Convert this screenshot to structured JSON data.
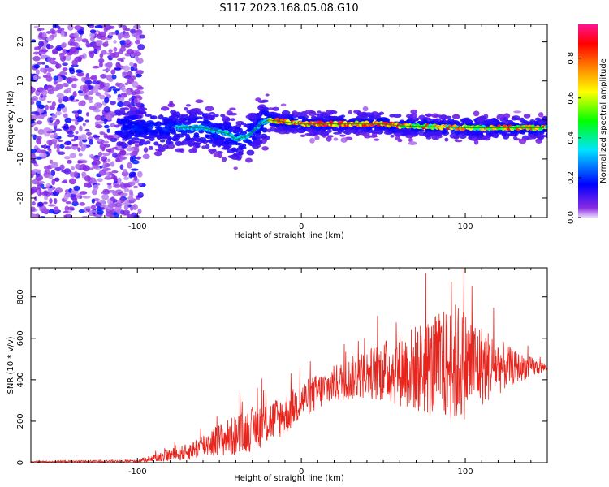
{
  "title": "S117.2023.168.05.08.G10",
  "chart_data": [
    {
      "type": "heatmap",
      "xlabel": "Height of straight line (km)",
      "ylabel": "Frequency (Hz)",
      "xlim": [
        -165,
        150
      ],
      "ylim": [
        -25,
        24.5
      ],
      "xticks": [
        -100,
        0,
        100
      ],
      "yticks": [
        -20,
        -10,
        0,
        10,
        20
      ],
      "colorbar": {
        "label": "Normalized spectral amplitude",
        "range": [
          0,
          0.97
        ],
        "ticks": [
          0.0,
          0.2,
          0.4,
          0.6,
          0.8
        ]
      },
      "ridge": {
        "x": [
          -75,
          -60,
          -45,
          -40,
          -32,
          -25,
          -20,
          0,
          50,
          60,
          100,
          115,
          148
        ],
        "y": [
          -2,
          -2,
          -3.5,
          -5,
          -4,
          -1,
          0,
          -1,
          -1,
          -1.5,
          -2,
          -2,
          -2
        ]
      }
    },
    {
      "type": "line",
      "xlabel": "Height of straight line (km)",
      "ylabel": "SNR (10 * v/v)",
      "xlim": [
        -165,
        150
      ],
      "ylim": [
        0,
        940
      ],
      "xticks": [
        -100,
        0,
        100
      ],
      "yticks": [
        0,
        200,
        400,
        600,
        800
      ],
      "series": [
        {
          "color": "#e8241c",
          "envelope_x": [
            -165,
            -100,
            -85,
            -70,
            -55,
            -40,
            -25,
            -10,
            0,
            20,
            40,
            60,
            80,
            95,
            110,
            130,
            150
          ],
          "mean": [
            5,
            8,
            30,
            50,
            100,
            130,
            180,
            230,
            300,
            380,
            430,
            450,
            460,
            480,
            470,
            460,
            460
          ],
          "amplitude": [
            3,
            6,
            25,
            40,
            70,
            100,
            110,
            100,
            90,
            90,
            120,
            180,
            250,
            300,
            200,
            80,
            20
          ]
        }
      ]
    }
  ]
}
